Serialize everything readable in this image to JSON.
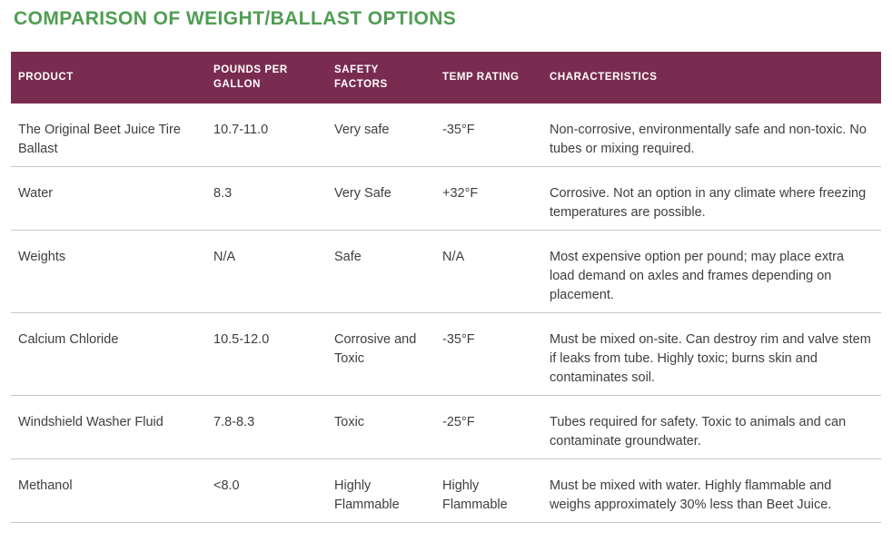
{
  "page": {
    "title": "COMPARISON OF WEIGHT/BALLAST OPTIONS"
  },
  "colors": {
    "title_green": "#4f9e52",
    "header_background": "#792c4f",
    "header_text": "#ffffff",
    "body_text": "#3e3e3e",
    "row_divider": "#c6c6c6",
    "page_background": "#ffffff"
  },
  "table": {
    "columns": [
      {
        "key": "product",
        "label": "PRODUCT"
      },
      {
        "key": "pounds_per_gallon",
        "label": "POUNDS PER GALLON"
      },
      {
        "key": "safety_factors",
        "label": "SAFETY FACTORS"
      },
      {
        "key": "temp_rating",
        "label": "TEMP RATING"
      },
      {
        "key": "characteristics",
        "label": "CHARACTERISTICS"
      }
    ],
    "rows": [
      {
        "product": "The Original Beet Juice Tire Ballast",
        "pounds_per_gallon": "10.7-11.0",
        "safety_factors": "Very safe",
        "temp_rating": "-35°F",
        "characteristics": "Non-corrosive, environmentally safe and non-toxic. No tubes or mixing required."
      },
      {
        "product": "Water",
        "pounds_per_gallon": "8.3",
        "safety_factors": "Very Safe",
        "temp_rating": "+32°F",
        "characteristics": "Corrosive. Not an option in any climate where freezing temperatures are possible."
      },
      {
        "product": "Weights",
        "pounds_per_gallon": "N/A",
        "safety_factors": "Safe",
        "temp_rating": "N/A",
        "characteristics": "Most expensive option per pound; may place extra load demand on axles and frames depending on placement."
      },
      {
        "product": "Calcium Chloride",
        "pounds_per_gallon": "10.5-12.0",
        "safety_factors": "Corrosive and Toxic",
        "temp_rating": "-35°F",
        "characteristics": "Must be mixed on-site. Can destroy rim and valve stem if leaks from tube. Highly toxic; burns skin and contaminates soil."
      },
      {
        "product": "Windshield Washer Fluid",
        "pounds_per_gallon": "7.8-8.3",
        "safety_factors": "Toxic",
        "temp_rating": "-25°F",
        "characteristics": "Tubes required for safety. Toxic to animals and can contaminate groundwater."
      },
      {
        "product": "Methanol",
        "pounds_per_gallon": "<8.0",
        "safety_factors": "Highly Flammable",
        "temp_rating": "Highly Flammable",
        "characteristics": "Must be mixed with water. Highly flammable and weighs approximately 30% less than Beet Juice."
      }
    ]
  }
}
